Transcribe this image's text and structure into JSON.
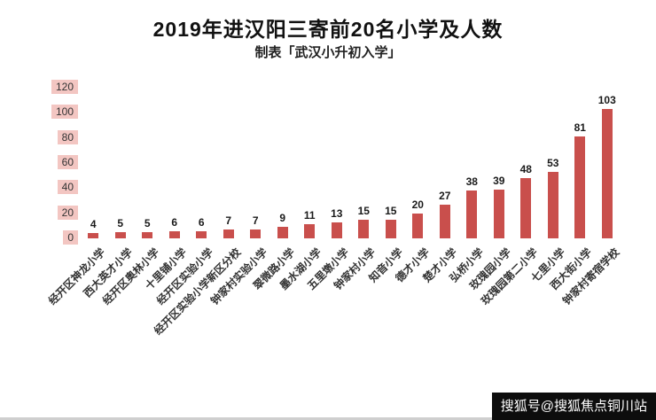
{
  "header": {
    "title": "2019年进汉阳三寄前20名小学及人数",
    "subtitle": "制表「武汉小升初入学」"
  },
  "watermark": {
    "text": "搜狐号@搜狐焦点铜川站"
  },
  "colors": {
    "bar": "#c94f4c",
    "ytick_bg": "#f3c6c2",
    "ytick_text": "#333333",
    "value_label": "#1a1a1a",
    "category_label": "#333333"
  },
  "chart_data": {
    "type": "bar",
    "title": "2019年进汉阳三寄前20名小学及人数",
    "subtitle": "制表「武汉小升初入学」",
    "categories": [
      "经开区神龙小学",
      "西大英才小学",
      "经开区奥林小学",
      "十里铺小学",
      "经开区实验小学",
      "经开区实验小学新区分校",
      "钟家村实验小学",
      "翠微路小学",
      "墨水湖小学",
      "五里墩小学",
      "钟家村小学",
      "知音小学",
      "德才小学",
      "楚才小学",
      "弘桥小学",
      "玫瑰园小学",
      "玫瑰园第二小学",
      "七里小学",
      "西大街小学",
      "钟家村寄宿学校"
    ],
    "values": [
      4,
      5,
      5,
      6,
      6,
      7,
      7,
      9,
      11,
      13,
      15,
      15,
      20,
      27,
      38,
      39,
      48,
      53,
      81,
      103
    ],
    "xlabel": "",
    "ylabel": "",
    "ylim": [
      0,
      120
    ],
    "yticks": [
      0,
      20,
      40,
      60,
      80,
      100,
      120
    ],
    "grid": false,
    "legend": false,
    "value_labels_shown": true
  }
}
